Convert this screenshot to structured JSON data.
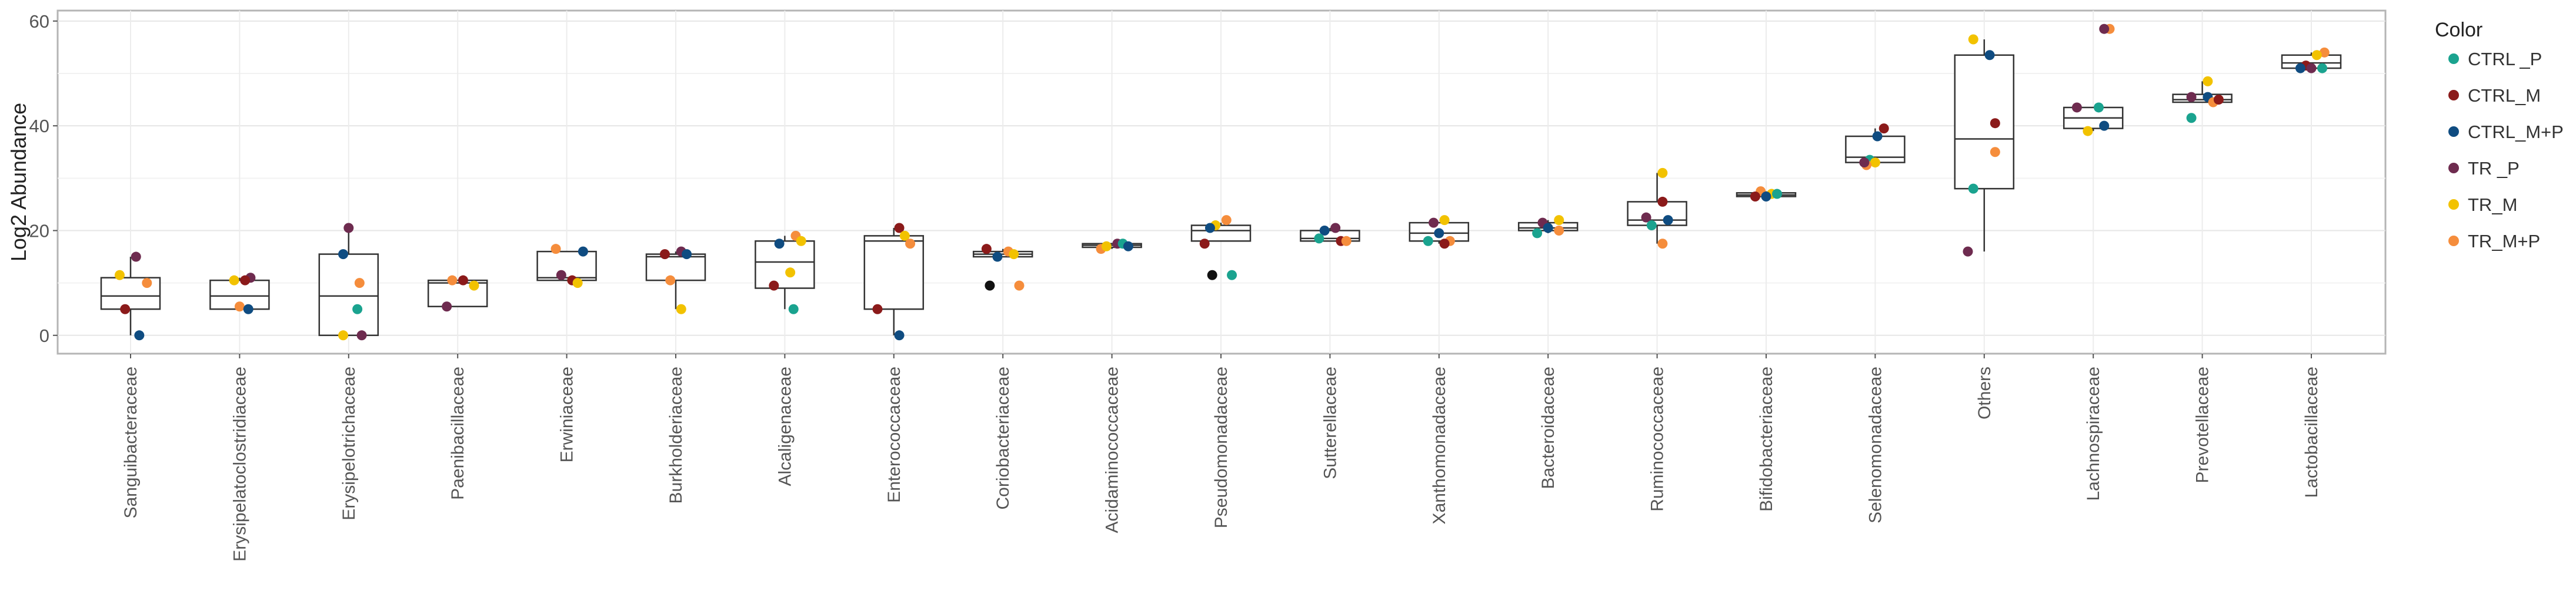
{
  "chart_data": {
    "type": "box",
    "ylabel": "Log2 Abundance",
    "xlabel": "",
    "title": "",
    "ylim": [
      -3.5,
      62
    ],
    "yticks": [
      0,
      20,
      40,
      60
    ],
    "grid": true,
    "legend_position": "right",
    "legend": {
      "title": "Color",
      "entries": [
        {
          "name": "CTRL _P",
          "color": "#1aa38f"
        },
        {
          "name": "CTRL_M",
          "color": "#8b1a1a"
        },
        {
          "name": "CTRL_M+P",
          "color": "#0f4c81"
        },
        {
          "name": "TR _P",
          "color": "#6e2b4f"
        },
        {
          "name": "TR_M",
          "color": "#f2c200"
        },
        {
          "name": "TR_M+P",
          "color": "#f58d3c"
        }
      ]
    },
    "categories": [
      "Sanguibacteraceae",
      "Erysipelatoclostridiaceae",
      "Erysipelotrichaceae",
      "Paenibacillaceae",
      "Erwiniaceae",
      "Burkholderiaceae",
      "Alcaligenaceae",
      "Enterococcaceae",
      "Coriobacteriaceae",
      "Acidaminococcaceae",
      "Pseudomonadaceae",
      "Sutterellaceae",
      "Xanthomonadaceae",
      "Bacteroidaceae",
      "Ruminococcaceae",
      "Bifidobacteriaceae",
      "Selenomonadaceae",
      "Others",
      "Lachnospiraceae",
      "Prevotellaceae",
      "Lactobacillaceae"
    ],
    "boxes": [
      {
        "q1": 5,
        "median": 7.5,
        "q3": 11,
        "lo": 0,
        "hi": 15
      },
      {
        "q1": 5,
        "median": 7.5,
        "q3": 10.5,
        "lo": 5,
        "hi": 11
      },
      {
        "q1": 0,
        "median": 7.5,
        "q3": 15.5,
        "lo": 0,
        "hi": 20.5
      },
      {
        "q1": 5.5,
        "median": 10,
        "q3": 10.5,
        "lo": 5.5,
        "hi": 10.5
      },
      {
        "q1": 10.5,
        "median": 11,
        "q3": 16,
        "lo": 10.5,
        "hi": 16
      },
      {
        "q1": 10.5,
        "median": 15,
        "q3": 15.5,
        "lo": 5,
        "hi": 16
      },
      {
        "q1": 9,
        "median": 14,
        "q3": 18,
        "lo": 5,
        "hi": 19
      },
      {
        "q1": 5,
        "median": 18,
        "q3": 19,
        "lo": 0,
        "hi": 20.5
      },
      {
        "q1": 15,
        "median": 15.5,
        "q3": 16,
        "lo": 15,
        "hi": 16.5
      },
      {
        "q1": 16.8,
        "median": 17.2,
        "q3": 17.5,
        "lo": 16.5,
        "hi": 17.5
      },
      {
        "q1": 18,
        "median": 20,
        "q3": 21,
        "lo": 18,
        "hi": 21.5
      },
      {
        "q1": 18,
        "median": 18.5,
        "q3": 20,
        "lo": 18,
        "hi": 20.5
      },
      {
        "q1": 18,
        "median": 19.5,
        "q3": 21.5,
        "lo": 17.5,
        "hi": 21.5
      },
      {
        "q1": 20,
        "median": 20.5,
        "q3": 21.5,
        "lo": 19.5,
        "hi": 22
      },
      {
        "q1": 21,
        "median": 22,
        "q3": 25.5,
        "lo": 17.5,
        "hi": 31
      },
      {
        "q1": 26.5,
        "median": 26.8,
        "q3": 27.2,
        "lo": 26.5,
        "hi": 27.5
      },
      {
        "q1": 33,
        "median": 34,
        "q3": 38,
        "lo": 33,
        "hi": 39.5
      },
      {
        "q1": 28,
        "median": 37.5,
        "q3": 53.5,
        "lo": 16,
        "hi": 56.5
      },
      {
        "q1": 39.5,
        "median": 41.5,
        "q3": 43.5,
        "lo": 39,
        "hi": 43.5
      },
      {
        "q1": 44.5,
        "median": 45,
        "q3": 46,
        "lo": 44.5,
        "hi": 48.5
      },
      {
        "q1": 51,
        "median": 52,
        "q3": 53.5,
        "lo": 51,
        "hi": 54
      }
    ],
    "points": [
      [
        [
          0.05,
          15,
          3
        ],
        [
          -0.1,
          11.5,
          4
        ],
        [
          0.15,
          10,
          5
        ],
        [
          -0.05,
          5,
          1
        ],
        [
          0.08,
          0,
          2
        ]
      ],
      [
        [
          0.1,
          11,
          3
        ],
        [
          -0.05,
          10.5,
          4
        ],
        [
          0.05,
          10.5,
          1
        ],
        [
          0,
          5.5,
          5
        ],
        [
          0.08,
          5,
          2
        ]
      ],
      [
        [
          0,
          20.5,
          3
        ],
        [
          -0.05,
          15.5,
          2
        ],
        [
          0.1,
          10,
          5
        ],
        [
          0.08,
          5,
          0
        ],
        [
          -0.05,
          0,
          4
        ],
        [
          0.12,
          0,
          3
        ]
      ],
      [
        [
          0.05,
          10.5,
          1
        ],
        [
          -0.05,
          10.5,
          5
        ],
        [
          0.15,
          9.5,
          4
        ],
        [
          -0.1,
          5.5,
          3
        ]
      ],
      [
        [
          -0.1,
          16.5,
          5
        ],
        [
          0.15,
          16,
          2
        ],
        [
          -0.05,
          11.5,
          3
        ],
        [
          0.05,
          10.5,
          1
        ],
        [
          0.1,
          10,
          4
        ]
      ],
      [
        [
          0.05,
          16,
          3
        ],
        [
          -0.1,
          15.5,
          1
        ],
        [
          0.1,
          15.5,
          2
        ],
        [
          -0.05,
          10.5,
          5
        ],
        [
          0.05,
          5,
          4
        ]
      ],
      [
        [
          -0.05,
          17.5,
          2
        ],
        [
          0.1,
          19,
          5
        ],
        [
          0.15,
          18,
          4
        ],
        [
          -0.1,
          9.5,
          1
        ],
        [
          0.05,
          12,
          4
        ],
        [
          0.08,
          5,
          0
        ]
      ],
      [
        [
          0.05,
          20.5,
          1
        ],
        [
          0.1,
          19,
          4
        ],
        [
          0.15,
          17.5,
          5
        ],
        [
          -0.15,
          5,
          1
        ],
        [
          0.05,
          0,
          2
        ]
      ],
      [
        [
          -0.15,
          16.5,
          1
        ],
        [
          0.05,
          16,
          5
        ],
        [
          0.1,
          15.5,
          4
        ],
        [
          -0.05,
          15,
          2
        ],
        [
          -0.12,
          9.5,
          -1
        ],
        [
          0.15,
          9.5,
          5
        ]
      ],
      [
        [
          -0.1,
          16.5,
          5
        ],
        [
          -0.05,
          17,
          4
        ],
        [
          0.05,
          17.5,
          3
        ],
        [
          0.1,
          17.5,
          0
        ],
        [
          0.15,
          17,
          2
        ]
      ],
      [
        [
          0.05,
          22,
          5
        ],
        [
          -0.05,
          21,
          4
        ],
        [
          -0.1,
          20.5,
          2
        ],
        [
          -0.15,
          17.5,
          1
        ],
        [
          -0.08,
          11.5,
          -1
        ],
        [
          0.1,
          11.5,
          0
        ]
      ],
      [
        [
          0.05,
          20.5,
          3
        ],
        [
          -0.05,
          20,
          2
        ],
        [
          -0.1,
          18.5,
          0
        ],
        [
          0.1,
          18,
          1
        ],
        [
          0.15,
          18,
          5
        ]
      ],
      [
        [
          0.05,
          22,
          4
        ],
        [
          -0.05,
          21.5,
          3
        ],
        [
          0,
          19.5,
          2
        ],
        [
          -0.1,
          18,
          0
        ],
        [
          0.1,
          18,
          5
        ],
        [
          0.05,
          17.5,
          1
        ]
      ],
      [
        [
          0.1,
          22,
          4
        ],
        [
          -0.05,
          21.5,
          3
        ],
        [
          0,
          20.5,
          2
        ],
        [
          0.1,
          20,
          5
        ],
        [
          -0.1,
          19.5,
          0
        ]
      ],
      [
        [
          0.05,
          31,
          4
        ],
        [
          -0.1,
          22.5,
          3
        ],
        [
          0.05,
          25.5,
          1
        ],
        [
          0.1,
          22,
          2
        ],
        [
          -0.05,
          21,
          0
        ],
        [
          0.05,
          17.5,
          5
        ]
      ],
      [
        [
          -0.05,
          27.5,
          5
        ],
        [
          0.05,
          27,
          4
        ],
        [
          0.1,
          27,
          0
        ],
        [
          0,
          26.5,
          2
        ],
        [
          -0.1,
          26.5,
          1
        ]
      ],
      [
        [
          0.08,
          39.5,
          1
        ],
        [
          0.02,
          38,
          2
        ],
        [
          -0.05,
          33.5,
          0
        ],
        [
          0,
          33,
          4
        ],
        [
          -0.08,
          32.5,
          5
        ],
        [
          -0.1,
          33,
          3
        ]
      ],
      [
        [
          -0.1,
          56.5,
          4
        ],
        [
          0.05,
          53.5,
          2
        ],
        [
          0.1,
          40.5,
          1
        ],
        [
          0.1,
          35,
          5
        ],
        [
          -0.1,
          28,
          0
        ],
        [
          -0.15,
          16,
          3
        ]
      ],
      [
        [
          0.15,
          58.5,
          5
        ],
        [
          0.1,
          58.5,
          3
        ],
        [
          0.05,
          43.5,
          0
        ],
        [
          -0.15,
          43.5,
          3
        ],
        [
          0.1,
          40,
          2
        ],
        [
          -0.05,
          39,
          4
        ]
      ],
      [
        [
          0.05,
          48.5,
          4
        ],
        [
          -0.1,
          45.5,
          3
        ],
        [
          0.05,
          45.5,
          2
        ],
        [
          0.1,
          44.5,
          5
        ],
        [
          0.15,
          45,
          1
        ],
        [
          -0.1,
          41.5,
          0
        ]
      ],
      [
        [
          0.12,
          54,
          5
        ],
        [
          0.05,
          53.5,
          4
        ],
        [
          -0.05,
          51.5,
          1
        ],
        [
          -0.1,
          51,
          2
        ],
        [
          0,
          51,
          3
        ],
        [
          0.1,
          51,
          0
        ]
      ]
    ],
    "point_colors": [
      "#1aa38f",
      "#8b1a1a",
      "#0f4c81",
      "#6e2b4f",
      "#f2c200",
      "#f58d3c"
    ],
    "unlisted_point_color": "#111111"
  }
}
